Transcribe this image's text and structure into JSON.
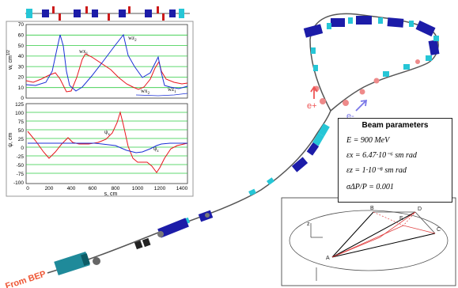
{
  "plot_top": {
    "ylabel": "w, cm",
    "ylabel_exp": "1/2",
    "yticks": [
      "70",
      "60",
      "50",
      "40",
      "30",
      "20",
      "10",
      "0"
    ],
    "labels": {
      "wz2": "wz",
      "wz2_sub": "2",
      "wx1": "wx",
      "wx1_sub": "1",
      "wx2": "wx",
      "wx2_sub": "2",
      "wz1": "wz",
      "wz1_sub": "1"
    }
  },
  "plot_bottom": {
    "ylabel": "ψ, cm",
    "yticks": [
      "125",
      "100",
      "75",
      "50",
      "25",
      "0",
      "-25",
      "-50",
      "-75",
      "-100"
    ],
    "xticks": [
      "0",
      "200",
      "400",
      "600",
      "800",
      "1000",
      "1200",
      "1400"
    ],
    "xlabel": "s, cm",
    "labels": {
      "psix": "ψ",
      "psix_sub": "x",
      "psiz": "ψ",
      "psiz_sub": "z"
    }
  },
  "beam_parameters": {
    "title": "Beam parameters",
    "energy": "E = 900  MeV",
    "emit_x": "εx = 6.47·10⁻⁶ sm rad",
    "emit_z": "εz = 1·10⁻⁸ sm rad",
    "spread": "σΔP/P = 0.001"
  },
  "ring": {
    "eplus": "e+",
    "eminus": "e-",
    "from_bep": "From BEP"
  },
  "geometry_labels": {
    "A": "A",
    "B": "B",
    "C": "C",
    "D": "D",
    "E": "E",
    "z": "z"
  },
  "colors": {
    "red_curve": "#e8141c",
    "blue_curve": "#1a2fd6",
    "grid_green": "#2ecc40",
    "dipole": "#1c1ca8",
    "quad": "#26c6d6",
    "eplus": "#ee5555",
    "eminus": "#7a78e8"
  }
}
